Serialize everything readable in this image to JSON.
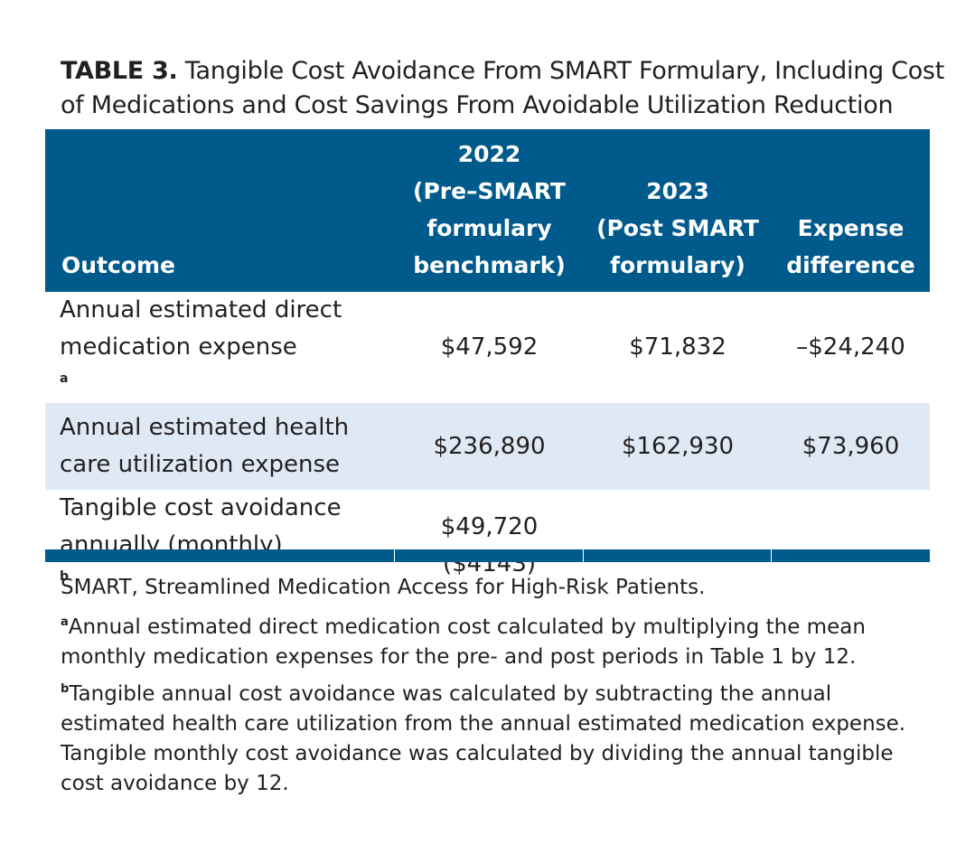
{
  "title": {
    "label": "TABLE 3.",
    "text": "Tangible Cost Avoidance From SMART Formulary, Including Cost of Medications and Cost Savings From Avoidable Utilization Reduction"
  },
  "table": {
    "headers": {
      "outcome": "Outcome",
      "col2": [
        "2022",
        "(Pre–SMART",
        "formulary",
        "benchmark)"
      ],
      "col3": [
        "2023",
        "(Post SMART",
        "formulary)"
      ],
      "col4": [
        "Expense",
        "difference"
      ]
    },
    "rows": [
      {
        "outcome_lines": [
          "Annual estimated direct",
          "medication expense"
        ],
        "footnote": "a",
        "y2022": "$47,592",
        "y2023": "$71,832",
        "difference": "–$24,240"
      },
      {
        "outcome_lines": [
          "Annual estimated health",
          "care utilization expense"
        ],
        "footnote": "",
        "y2022": "$236,890",
        "y2023": "$162,930",
        "difference": "$73,960"
      },
      {
        "outcome_lines": [
          "Tangible cost avoidance",
          "annually (monthly)"
        ],
        "footnote": "b",
        "y2022_lines": [
          "$49,720",
          "($4143)"
        ],
        "y2023": "",
        "difference": ""
      }
    ]
  },
  "notes": {
    "abbrev": "SMART, Streamlined Medication Access for High-Risk Patients.",
    "a_mark": "a",
    "a_text": "Annual estimated direct medication cost calculated by multiplying the mean monthly medication expenses for the pre- and post periods in Table 1 by 12.",
    "b_mark": "b",
    "b_text": "Tangible annual cost avoidance was calculated by subtracting the annual estimated health care utilization from the annual estimated medication expense. Tangible monthly cost avoidance was calculated by dividing the annual tangible cost avoidance by 12."
  },
  "colors": {
    "header_bg": "#005a8b",
    "stripe_bg": "#dfe9f5",
    "text": "#231f20"
  }
}
